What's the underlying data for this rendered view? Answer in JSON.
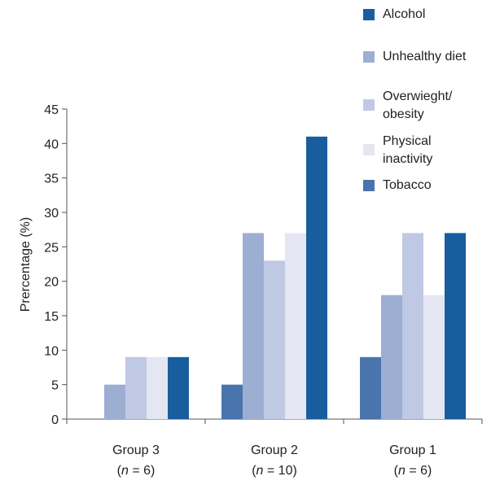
{
  "chart_data": {
    "type": "bar",
    "ylabel": "Prercentage (%)",
    "ylim": [
      0,
      45
    ],
    "yticks": [
      0,
      5,
      10,
      15,
      20,
      25,
      30,
      35,
      40,
      45
    ],
    "grid": false,
    "legend_position": "top-right",
    "categories": [
      {
        "name": "Group 3",
        "n_prefix": "(",
        "n_var": "n",
        "n_suffix": " = 6)"
      },
      {
        "name": "Group 2",
        "n_prefix": "(",
        "n_var": "n",
        "n_suffix": " = 10)"
      },
      {
        "name": "Group 1",
        "n_prefix": "(",
        "n_var": "n",
        "n_suffix": " = 6)"
      }
    ],
    "series": [
      {
        "name": "Tobacco",
        "color": "#4a74ad",
        "values": [
          0,
          5,
          9
        ]
      },
      {
        "name": "Unhealthy diet",
        "color": "#9daed3",
        "values": [
          5,
          27,
          18
        ]
      },
      {
        "name": "Overwieght/obesity",
        "legend_lines": [
          "Overwieght/",
          "obesity"
        ],
        "color": "#c0c9e3",
        "values": [
          9,
          23,
          27
        ]
      },
      {
        "name": "Physical inactivity",
        "legend_lines": [
          "Physical",
          "inactivity"
        ],
        "color": "#e4e7f2",
        "values": [
          9,
          27,
          18
        ]
      },
      {
        "name": "Alcohol",
        "color": "#185e9f",
        "values": [
          9,
          41,
          27
        ]
      }
    ],
    "legend_order": [
      "Alcohol",
      "Unhealthy diet",
      "Overwieght/obesity",
      "Physical inactivity",
      "Tobacco"
    ]
  }
}
